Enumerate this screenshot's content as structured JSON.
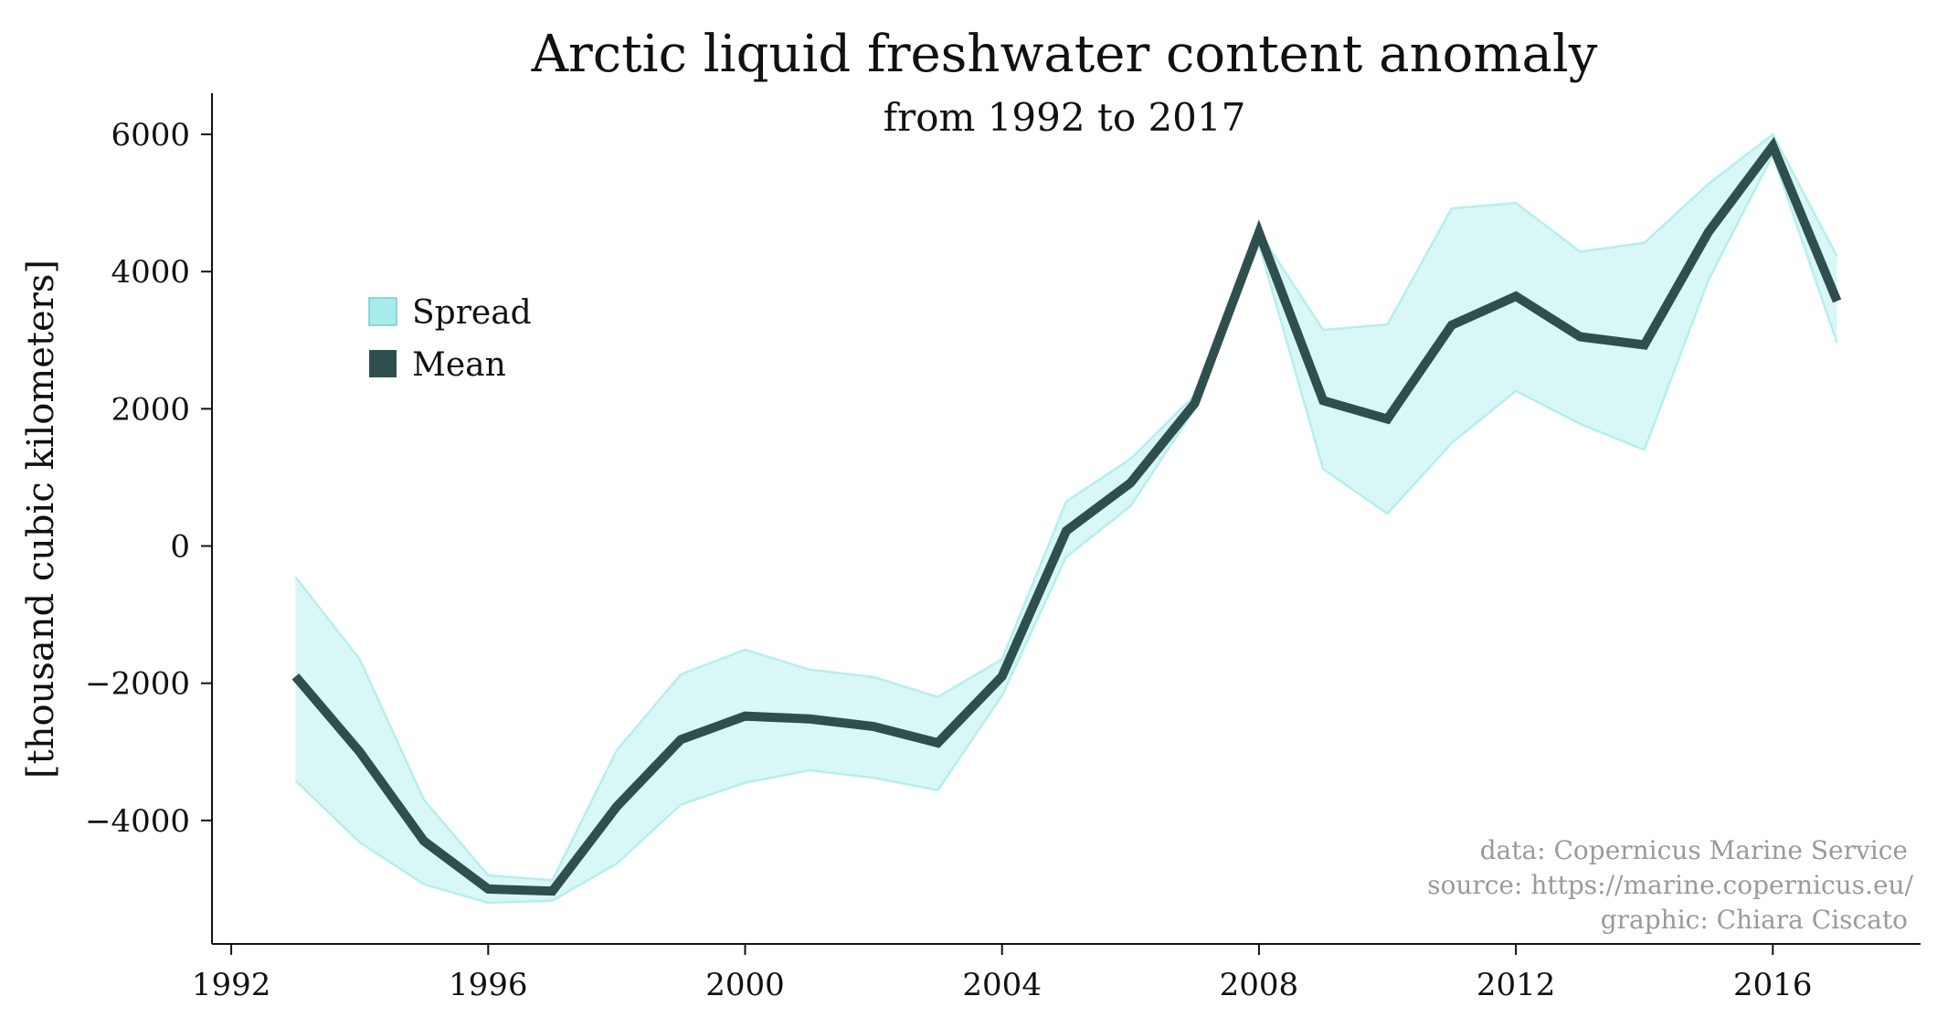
{
  "chart_data": {
    "type": "line",
    "title": "Arctic liquid freshwater content anomaly",
    "subtitle": "from 1992 to 2017",
    "xlabel": "",
    "ylabel": "[thousand cubic kilometers]",
    "xlim": [
      1991.7,
      2018.3
    ],
    "ylim": [
      -5800,
      6600
    ],
    "x_ticks": [
      1992,
      1996,
      2000,
      2004,
      2008,
      2012,
      2016
    ],
    "x_tick_labels": [
      "1992",
      "1996",
      "2000",
      "2004",
      "2008",
      "2012",
      "2016"
    ],
    "y_ticks": [
      6000,
      4000,
      2000,
      0,
      -2000,
      -4000
    ],
    "y_tick_labels": [
      "6000",
      "4000",
      "2000",
      "0",
      "−2000",
      "−4000"
    ],
    "grid": false,
    "legend_position": "upper-left",
    "legend": [
      {
        "label": "Spread",
        "color": "#a8ebeb"
      },
      {
        "label": "Mean",
        "color": "#2f4f4f"
      }
    ],
    "x": [
      1993,
      1994,
      1995,
      1996,
      1997,
      1998,
      1999,
      2000,
      2001,
      2002,
      2003,
      2004,
      2005,
      2006,
      2007,
      2008,
      2009,
      2010,
      2011,
      2012,
      2013,
      2014,
      2015,
      2016,
      2017
    ],
    "series": [
      {
        "name": "Mean",
        "color": "#2f4f4f",
        "values": [
          -1900,
          -3000,
          -4300,
          -5000,
          -5030,
          -3800,
          -2820,
          -2480,
          -2520,
          -2630,
          -2870,
          -1900,
          220,
          920,
          2080,
          4570,
          2120,
          1850,
          3220,
          3640,
          3050,
          2930,
          4580,
          5830,
          3570
        ]
      },
      {
        "name": "Spread",
        "color": "#a8ebeb",
        "upper": [
          -450,
          -1650,
          -3700,
          -4800,
          -4870,
          -2980,
          -1870,
          -1510,
          -1800,
          -1910,
          -2200,
          -1650,
          650,
          1270,
          2200,
          4580,
          3150,
          3230,
          4920,
          5000,
          4290,
          4420,
          5280,
          6000,
          4220
        ],
        "lower": [
          -3420,
          -4320,
          -4930,
          -5200,
          -5170,
          -4630,
          -3770,
          -3450,
          -3270,
          -3380,
          -3560,
          -2180,
          -160,
          580,
          2000,
          4400,
          1120,
          470,
          1500,
          2260,
          1780,
          1400,
          3880,
          5700,
          2960
        ]
      }
    ]
  },
  "credits": {
    "data": "data: Copernicus Marine Service",
    "source": "source: https://marine.copernicus.eu/",
    "graphic": "graphic: Chiara Ciscato"
  }
}
